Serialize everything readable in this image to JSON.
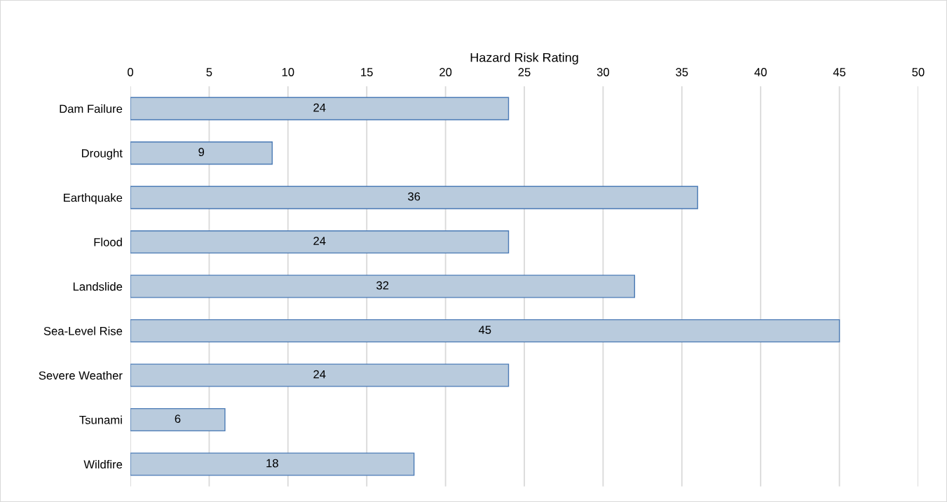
{
  "chart_data": {
    "type": "bar",
    "orientation": "horizontal",
    "xlabel": "Hazard Risk Rating",
    "categories": [
      "Dam Failure",
      "Drought",
      "Earthquake",
      "Flood",
      "Landslide",
      "Sea-Level Rise",
      "Severe Weather",
      "Tsunami",
      "Wildfire"
    ],
    "values": [
      24,
      9,
      36,
      24,
      32,
      45,
      24,
      6,
      18
    ],
    "color": "#b9cbdd",
    "xlim": [
      0,
      50
    ],
    "xticks": [
      0,
      5,
      10,
      15,
      20,
      25,
      30,
      35,
      40,
      45,
      50
    ],
    "grid": "x",
    "data_labels": true
  }
}
